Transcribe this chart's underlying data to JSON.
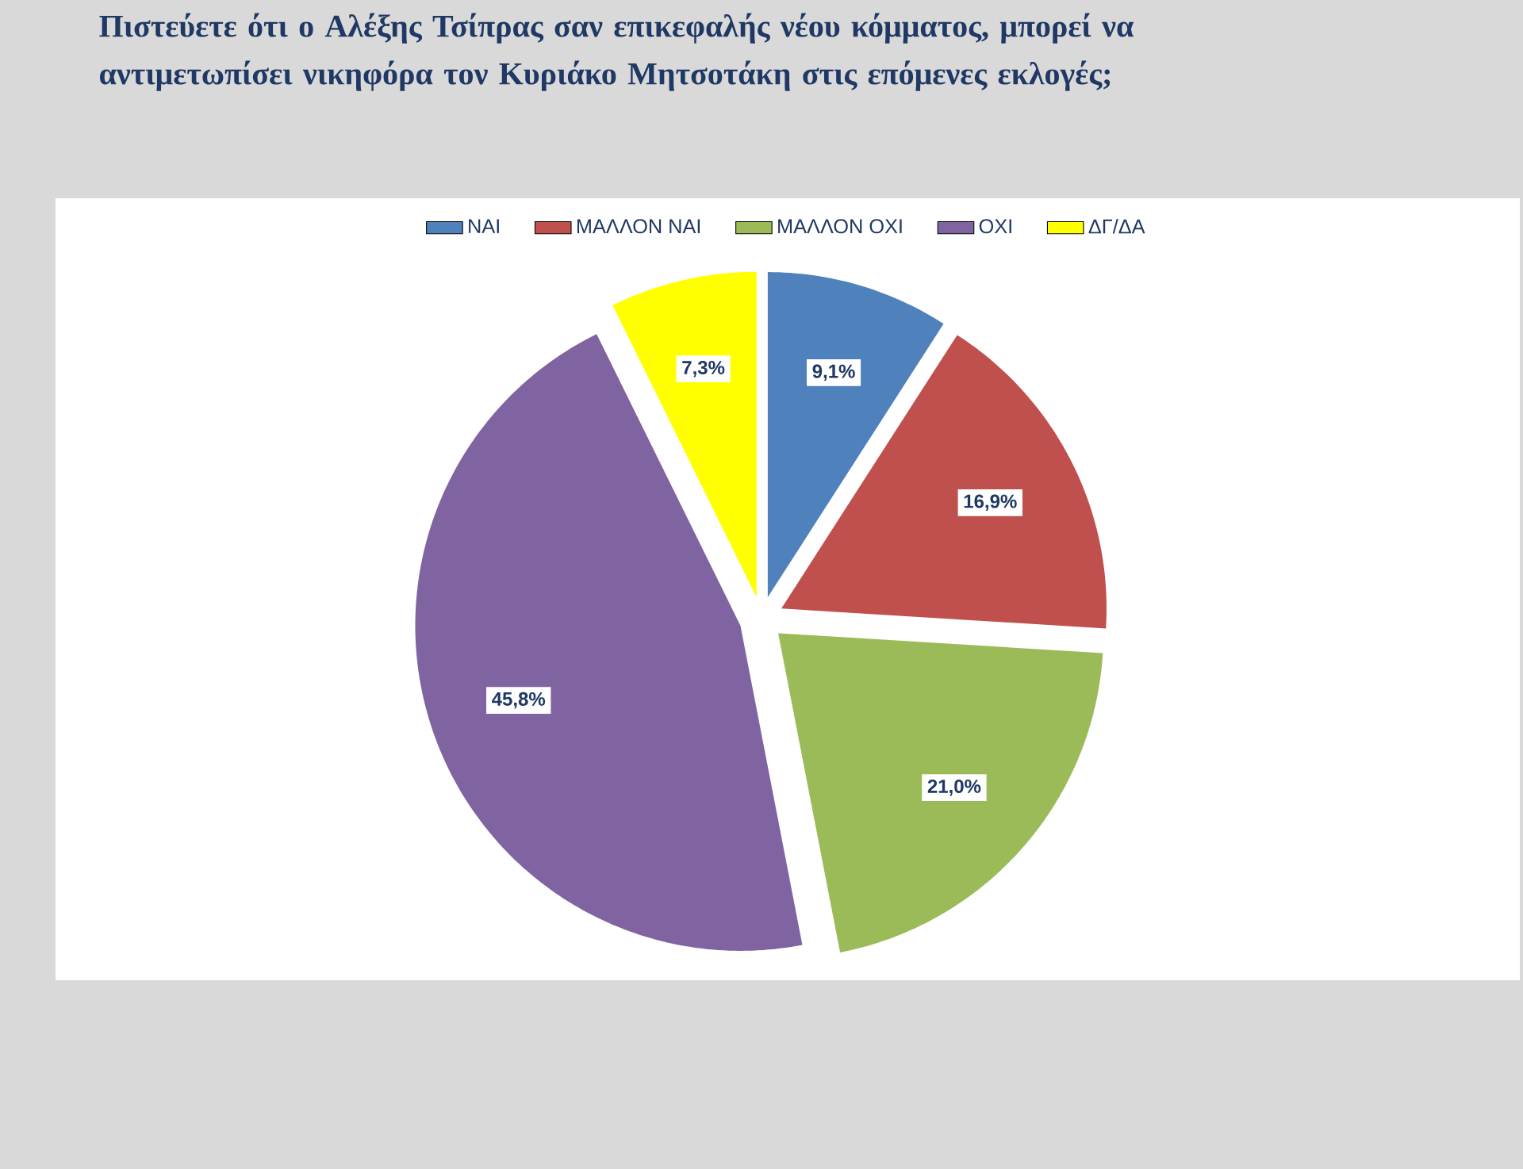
{
  "chart_data": {
    "type": "pie",
    "title": "Πιστεύετε ότι ο Αλέξης Τσίπρας σαν επικεφαλής νέου κόμματος, μπορεί να αντιμετωπίσει νικηφόρα τον Κυριάκο Μητσοτάκη στις επόμενες εκλογές;",
    "categories": [
      "ΝΑΙ",
      "ΜΑΛΛΟΝ ΝΑΙ",
      "ΜΑΛΛΟΝ ΟΧΙ",
      "ΟΧΙ",
      "ΔΓ/ΔΑ"
    ],
    "values": [
      9.1,
      16.9,
      21.0,
      45.8,
      7.3
    ],
    "value_labels": [
      "9,1%",
      "16,9%",
      "21,0%",
      "45,8%",
      "7,3%"
    ],
    "colors": [
      "#4f81bd",
      "#c0504d",
      "#9bbb59",
      "#8064a2",
      "#ffff00"
    ],
    "legend": "top"
  }
}
